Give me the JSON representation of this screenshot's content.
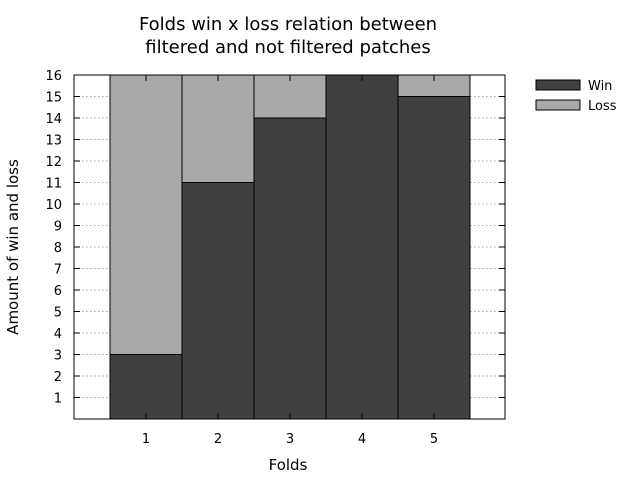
{
  "chart_data": {
    "type": "bar",
    "stacked": true,
    "title_lines": [
      "Folds win x loss relation between",
      "filtered and not filtered patches"
    ],
    "xlabel": "Folds",
    "ylabel": "Amount of win and loss",
    "categories": [
      "1",
      "2",
      "3",
      "4",
      "5"
    ],
    "y_ticks": [
      "1",
      "2",
      "3",
      "4",
      "5",
      "6",
      "7",
      "8",
      "9",
      "10",
      "11",
      "12",
      "13",
      "14",
      "15",
      "16"
    ],
    "ylim": [
      0,
      16
    ],
    "grid": true,
    "legend_position": "top-right-outside",
    "series": [
      {
        "name": "Win",
        "color": "#404040",
        "values": [
          3,
          11,
          14,
          16,
          15
        ]
      },
      {
        "name": "Loss",
        "color": "#a8a8a8",
        "values": [
          13,
          5,
          2,
          0,
          1
        ]
      }
    ]
  }
}
